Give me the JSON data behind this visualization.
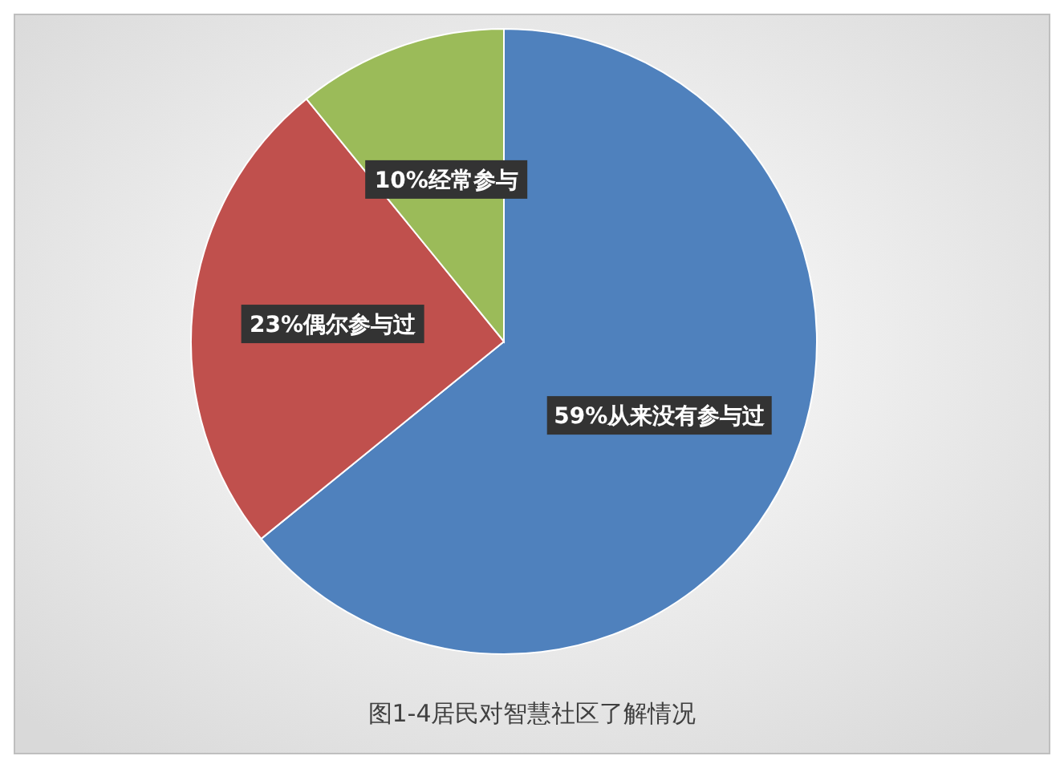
{
  "chart_data": {
    "type": "pie",
    "title": "图1-4居民对智慧社区了解情况",
    "categories": [
      "从来没有参与过",
      "偶尔参与过",
      "经常参与"
    ],
    "values": [
      59,
      23,
      10
    ],
    "value_labels": [
      "59%",
      "23%",
      "10%"
    ],
    "colors": [
      "#4f81bd",
      "#c0504d",
      "#9bbb59"
    ]
  }
}
